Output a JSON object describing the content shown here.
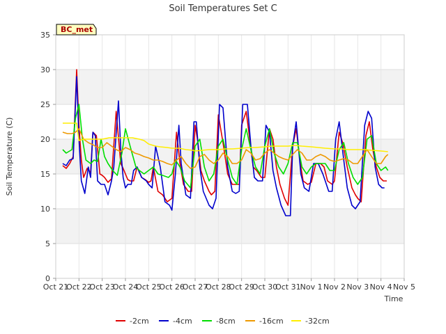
{
  "chart_data": {
    "type": "line",
    "title": "Soil Temperatures Set C",
    "xlabel": "Time",
    "ylabel": "Soil Temperature (C)",
    "badge": "BC_met",
    "xlim": [
      0,
      15
    ],
    "ylim": [
      0,
      35
    ],
    "x_ticks": [
      {
        "pos": 0,
        "label": "Oct 21"
      },
      {
        "pos": 1,
        "label": "Oct 22"
      },
      {
        "pos": 2,
        "label": "Oct 23"
      },
      {
        "pos": 3,
        "label": "Oct 24"
      },
      {
        "pos": 4,
        "label": "Oct 25"
      },
      {
        "pos": 5,
        "label": "Oct 26"
      },
      {
        "pos": 6,
        "label": "Oct 27"
      },
      {
        "pos": 7,
        "label": "Oct 28"
      },
      {
        "pos": 8,
        "label": "Oct 29"
      },
      {
        "pos": 9,
        "label": "Oct 30"
      },
      {
        "pos": 10,
        "label": "Oct 31"
      },
      {
        "pos": 11,
        "label": "Nov 1"
      },
      {
        "pos": 12,
        "label": "Nov 2"
      },
      {
        "pos": 13,
        "label": "Nov 3"
      },
      {
        "pos": 14,
        "label": "Nov 4"
      },
      {
        "pos": 15,
        "label": "Nov 5"
      }
    ],
    "y_ticks": [
      0,
      5,
      10,
      15,
      20,
      25,
      30,
      35
    ],
    "grid": true,
    "legend_position": "bottom",
    "series": [
      {
        "name": "-2cm",
        "color": "#e00000",
        "x": [
          0.3,
          0.45,
          0.6,
          0.75,
          0.9,
          1.0,
          1.1,
          1.2,
          1.35,
          1.5,
          1.6,
          1.75,
          1.9,
          2.0,
          2.1,
          2.25,
          2.4,
          2.6,
          2.8,
          2.9,
          3.0,
          3.1,
          3.2,
          3.35,
          3.5,
          3.7,
          3.85,
          4.0,
          4.1,
          4.2,
          4.4,
          4.6,
          4.8,
          5.0,
          5.2,
          5.35,
          5.5,
          5.6,
          5.7,
          5.85,
          6.0,
          6.1,
          6.25,
          6.4,
          6.6,
          6.7,
          6.85,
          7.0,
          7.2,
          7.4,
          7.6,
          7.75,
          7.9,
          8.0,
          8.2,
          8.35,
          8.5,
          8.65,
          8.85,
          9.0,
          9.2,
          9.35,
          9.5,
          9.65,
          9.85,
          10.0,
          10.2,
          10.35,
          10.55,
          10.65,
          10.85,
          11.0,
          11.2,
          11.4,
          11.55,
          11.7,
          11.9,
          12.0,
          12.2,
          12.35,
          12.55,
          12.75,
          12.9,
          13.0,
          13.15,
          13.35,
          13.5,
          13.65,
          13.8,
          13.95,
          14.1,
          14.25
        ],
        "y": [
          16.2,
          15.8,
          16.5,
          17.5,
          30.0,
          22.0,
          17.0,
          14.5,
          15.8,
          15.2,
          21.0,
          20.5,
          15.0,
          14.8,
          14.5,
          13.8,
          14.3,
          24.0,
          16.5,
          15.8,
          15.0,
          14.2,
          14.0,
          14.0,
          16.0,
          14.5,
          14.2,
          13.8,
          14.0,
          16.0,
          12.5,
          12.0,
          11.0,
          11.5,
          21.0,
          16.5,
          13.5,
          13.0,
          12.5,
          12.5,
          22.0,
          20.0,
          15.5,
          14.0,
          12.5,
          12.0,
          12.5,
          23.5,
          19.5,
          15.0,
          13.5,
          13.5,
          13.5,
          22.0,
          24.0,
          20.0,
          16.0,
          15.5,
          14.5,
          14.5,
          21.5,
          20.0,
          16.0,
          13.5,
          11.5,
          10.5,
          19.0,
          21.5,
          16.0,
          14.0,
          13.5,
          13.8,
          16.5,
          16.5,
          16.0,
          14.0,
          13.5,
          14.0,
          21.0,
          19.5,
          16.0,
          13.0,
          12.0,
          11.5,
          11.0,
          20.5,
          22.5,
          18.5,
          16.0,
          14.5,
          14.0,
          14.0
        ]
      },
      {
        "name": "-4cm",
        "color": "#0000cc",
        "x": [
          0.3,
          0.45,
          0.6,
          0.75,
          0.9,
          1.0,
          1.1,
          1.25,
          1.4,
          1.5,
          1.6,
          1.7,
          1.8,
          1.95,
          2.1,
          2.25,
          2.4,
          2.5,
          2.7,
          2.8,
          2.9,
          3.0,
          3.1,
          3.25,
          3.35,
          3.5,
          3.7,
          3.9,
          4.0,
          4.15,
          4.3,
          4.5,
          4.7,
          4.9,
          5.0,
          5.15,
          5.3,
          5.4,
          5.6,
          5.8,
          5.95,
          6.05,
          6.2,
          6.35,
          6.6,
          6.75,
          6.9,
          7.05,
          7.2,
          7.4,
          7.6,
          7.75,
          7.9,
          8.05,
          8.25,
          8.4,
          8.55,
          8.7,
          8.9,
          9.05,
          9.2,
          9.35,
          9.5,
          9.7,
          9.9,
          10.1,
          10.2,
          10.35,
          10.55,
          10.7,
          10.9,
          11.1,
          11.3,
          11.5,
          11.6,
          11.75,
          11.9,
          12.05,
          12.2,
          12.4,
          12.55,
          12.75,
          12.9,
          13.1,
          13.3,
          13.45,
          13.6,
          13.75,
          13.9,
          14.05,
          14.15
        ],
        "y": [
          16.5,
          16.2,
          17.0,
          17.2,
          29.0,
          20.0,
          14.0,
          12.2,
          16.0,
          14.5,
          21.0,
          20.5,
          14.0,
          13.5,
          13.5,
          12.0,
          14.0,
          16.0,
          25.5,
          18.5,
          14.5,
          13.0,
          13.5,
          13.5,
          15.5,
          16.0,
          14.5,
          14.0,
          13.5,
          13.0,
          19.0,
          16.0,
          11.0,
          10.5,
          9.8,
          15.0,
          22.0,
          16.5,
          12.0,
          11.5,
          22.5,
          22.5,
          16.0,
          12.5,
          10.5,
          10.0,
          11.5,
          25.0,
          24.5,
          16.0,
          12.5,
          12.2,
          12.5,
          25.0,
          25.0,
          19.0,
          14.5,
          14.0,
          14.0,
          22.0,
          21.0,
          15.5,
          13.0,
          10.5,
          9.0,
          9.0,
          19.0,
          22.5,
          15.0,
          13.0,
          12.5,
          16.5,
          16.5,
          15.0,
          14.0,
          12.5,
          12.5,
          20.0,
          22.5,
          17.0,
          13.0,
          10.5,
          10.0,
          11.0,
          22.0,
          24.0,
          23.0,
          16.0,
          13.5,
          13.0,
          13.0
        ]
      },
      {
        "name": "-8cm",
        "color": "#00dd00",
        "x": [
          0.3,
          0.45,
          0.7,
          0.85,
          1.0,
          1.15,
          1.3,
          1.5,
          1.65,
          1.8,
          1.95,
          2.1,
          2.25,
          2.45,
          2.65,
          2.85,
          3.0,
          3.2,
          3.45,
          3.6,
          3.8,
          4.0,
          4.2,
          4.4,
          4.6,
          4.85,
          5.0,
          5.15,
          5.35,
          5.55,
          5.8,
          6.0,
          6.2,
          6.4,
          6.6,
          6.8,
          7.0,
          7.2,
          7.4,
          7.6,
          7.8,
          8.0,
          8.2,
          8.4,
          8.6,
          8.8,
          9.0,
          9.2,
          9.4,
          9.6,
          9.8,
          10.0,
          10.2,
          10.4,
          10.6,
          10.8,
          11.0,
          11.2,
          11.4,
          11.6,
          11.8,
          12.0,
          12.2,
          12.4,
          12.6,
          12.8,
          13.0,
          13.2,
          13.4,
          13.6,
          13.8,
          14.0,
          14.2,
          14.3
        ],
        "y": [
          18.5,
          18.0,
          18.5,
          23.0,
          25.0,
          20.0,
          17.0,
          16.5,
          17.0,
          16.8,
          20.0,
          17.5,
          16.5,
          15.5,
          14.8,
          18.0,
          21.5,
          19.0,
          16.0,
          15.5,
          15.0,
          15.5,
          16.0,
          15.0,
          14.8,
          14.5,
          15.0,
          17.0,
          16.0,
          14.0,
          13.0,
          19.0,
          20.0,
          16.0,
          14.0,
          15.0,
          19.0,
          20.0,
          17.0,
          14.5,
          13.5,
          18.5,
          21.5,
          18.5,
          16.0,
          15.0,
          19.0,
          21.5,
          18.0,
          16.0,
          15.0,
          16.5,
          19.5,
          19.5,
          16.0,
          15.0,
          16.0,
          16.5,
          16.5,
          16.5,
          15.5,
          15.5,
          18.5,
          19.5,
          16.5,
          14.5,
          13.5,
          14.5,
          20.0,
          20.5,
          16.5,
          15.5,
          16.0,
          15.5
        ]
      },
      {
        "name": "-16cm",
        "color": "#ee9900",
        "x": [
          0.3,
          0.5,
          0.7,
          0.85,
          1.0,
          1.2,
          1.4,
          1.6,
          1.8,
          2.0,
          2.2,
          2.4,
          2.6,
          2.8,
          3.0,
          3.2,
          3.4,
          3.6,
          3.8,
          4.0,
          4.2,
          4.4,
          4.6,
          4.8,
          5.0,
          5.2,
          5.4,
          5.6,
          5.8,
          6.0,
          6.2,
          6.4,
          6.6,
          6.8,
          7.0,
          7.2,
          7.4,
          7.6,
          7.8,
          8.0,
          8.2,
          8.4,
          8.6,
          8.8,
          9.0,
          9.2,
          9.4,
          9.6,
          9.8,
          10.0,
          10.2,
          10.4,
          10.6,
          10.8,
          11.0,
          11.2,
          11.4,
          11.6,
          11.8,
          12.0,
          12.2,
          12.4,
          12.6,
          12.8,
          13.0,
          13.2,
          13.4,
          13.6,
          13.8,
          14.0,
          14.2,
          14.3
        ],
        "y": [
          21.0,
          20.8,
          20.8,
          21.0,
          21.5,
          20.0,
          19.5,
          19.2,
          18.8,
          18.8,
          19.5,
          19.0,
          18.5,
          18.2,
          18.8,
          18.5,
          18.0,
          17.8,
          17.5,
          17.3,
          17.0,
          17.0,
          16.8,
          16.5,
          16.3,
          17.0,
          17.5,
          16.5,
          15.8,
          16.0,
          17.5,
          17.8,
          17.0,
          16.5,
          17.0,
          18.0,
          17.5,
          16.5,
          16.5,
          17.0,
          18.5,
          18.0,
          17.0,
          17.2,
          18.0,
          18.5,
          18.0,
          17.5,
          17.2,
          17.0,
          17.8,
          18.5,
          18.0,
          17.0,
          17.0,
          17.5,
          17.8,
          17.5,
          17.0,
          16.8,
          17.0,
          17.2,
          17.0,
          16.5,
          16.5,
          17.5,
          18.5,
          17.5,
          16.5,
          16.5,
          17.5,
          17.8
        ]
      },
      {
        "name": "-32cm",
        "color": "#ffee00",
        "x": [
          0.3,
          0.5,
          0.7,
          0.9,
          1.0,
          1.2,
          1.5,
          1.8,
          2.0,
          2.3,
          2.6,
          3.0,
          3.3,
          3.6,
          3.8,
          4.0,
          4.3,
          4.5,
          4.8,
          5.0,
          5.3,
          5.6,
          5.9,
          6.0,
          6.3,
          6.6,
          7.0,
          7.3,
          7.6,
          8.0,
          8.3,
          8.6,
          9.0,
          9.3,
          9.6,
          10.0,
          10.3,
          10.6,
          11.0,
          11.3,
          11.6,
          12.0,
          12.3,
          12.6,
          13.0,
          13.3,
          13.6,
          14.0,
          14.3
        ],
        "y": [
          22.3,
          22.3,
          22.3,
          22.3,
          19.8,
          20.0,
          20.0,
          20.0,
          20.0,
          20.2,
          20.2,
          20.2,
          20.2,
          20.0,
          19.8,
          19.3,
          19.0,
          18.9,
          18.8,
          18.7,
          18.7,
          18.5,
          18.4,
          18.3,
          18.4,
          18.5,
          18.5,
          18.6,
          18.6,
          18.7,
          18.8,
          18.8,
          18.9,
          19.0,
          19.0,
          19.0,
          19.1,
          19.0,
          18.9,
          18.8,
          18.7,
          18.6,
          18.6,
          18.5,
          18.5,
          18.5,
          18.4,
          18.3,
          18.2
        ]
      }
    ]
  }
}
